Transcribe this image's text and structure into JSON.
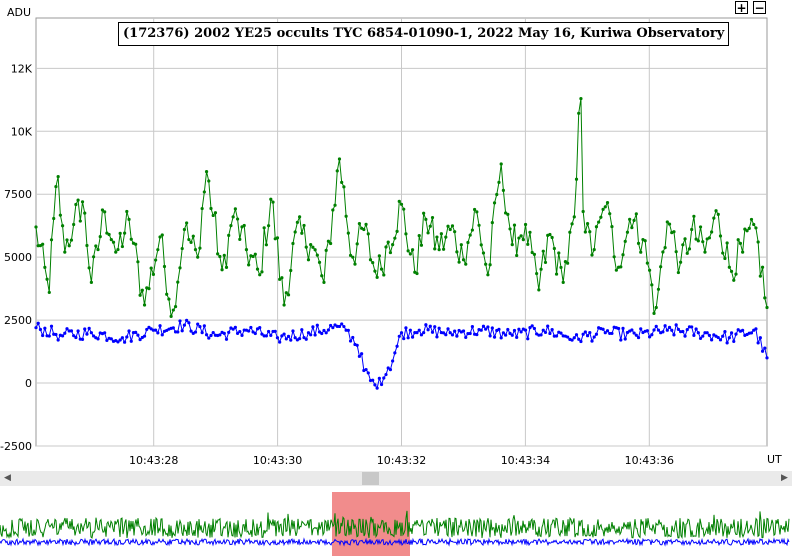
{
  "chart_data": {
    "type": "line",
    "title": "(172376) 2002 YE25 occults TYC 6854-01090-1, 2022 May 16, Kuriwa Observatory",
    "ylabel": "ADU",
    "xlabel": "UT",
    "ylim": [
      -2500,
      14500
    ],
    "xlim": [
      "10:43:26.1",
      "10:43:37.9"
    ],
    "y_tick_labels": [
      "-2500",
      "0",
      "2500",
      "5000",
      "7500",
      "10K",
      "12K"
    ],
    "y_ticks": [
      -2500,
      0,
      2500,
      5000,
      7500,
      10000,
      12500
    ],
    "x_tick_labels": [
      "10:43:28",
      "10:43:30",
      "10:43:32",
      "10:43:34",
      "10:43:36"
    ],
    "x_ticks_seconds": [
      28,
      30,
      32,
      34,
      36
    ],
    "grid": true,
    "series": [
      {
        "color": "#008000",
        "anchors_x": [
          26.1,
          26.3,
          26.45,
          26.55,
          26.7,
          26.85,
          27.0,
          27.2,
          27.4,
          27.6,
          27.85,
          28.1,
          28.3,
          28.5,
          28.7,
          28.85,
          29.1,
          29.3,
          29.5,
          29.7,
          29.9,
          30.1,
          30.3,
          30.55,
          30.75,
          31.0,
          31.2,
          31.4,
          31.6,
          31.8,
          32.0,
          32.2,
          32.4,
          32.6,
          32.8,
          33.0,
          33.2,
          33.4,
          33.6,
          33.8,
          34.0,
          34.2,
          34.4,
          34.6,
          34.8,
          34.88,
          34.95,
          35.1,
          35.3,
          35.5,
          35.7,
          35.9,
          36.1,
          36.3,
          36.5,
          36.7,
          36.9,
          37.1,
          37.3,
          37.5,
          37.7,
          37.9
        ],
        "anchors_y": [
          6200,
          3600,
          8200,
          5200,
          6300,
          7200,
          4000,
          6800,
          5200,
          6500,
          3100,
          5800,
          2900,
          6100,
          5000,
          8400,
          4500,
          6600,
          5300,
          4300,
          7300,
          3100,
          6000,
          5500,
          4000,
          8900,
          5000,
          6100,
          4200,
          5600,
          7100,
          4400,
          6500,
          5300,
          6100,
          4900,
          6800,
          4300,
          8700,
          5500,
          6300,
          3700,
          5900,
          4000,
          6600,
          11300,
          6000,
          5300,
          7000,
          4600,
          6500,
          5700,
          3000,
          6400,
          4800,
          6100,
          5200,
          6700,
          4600,
          5200,
          6300,
          3000
        ],
        "amplitude": 1300
      },
      {
        "color": "#0000ff",
        "anchors_x": [
          26.1,
          26.5,
          27.0,
          27.5,
          28.0,
          28.5,
          29.0,
          29.5,
          30.0,
          30.5,
          30.9,
          31.1,
          31.3,
          31.4,
          31.5,
          31.6,
          31.7,
          31.8,
          31.9,
          32.0,
          32.3,
          32.8,
          33.3,
          33.8,
          34.3,
          34.8,
          35.3,
          35.8,
          36.3,
          36.8,
          37.3,
          37.7,
          37.9
        ],
        "anchors_y": [
          2200,
          1900,
          2000,
          1800,
          2100,
          2300,
          1900,
          2100,
          1800,
          2000,
          2200,
          2100,
          1500,
          500,
          100,
          -200,
          200,
          600,
          1200,
          2000,
          2100,
          2000,
          2100,
          1900,
          2100,
          1800,
          2000,
          1900,
          2100,
          2000,
          1800,
          2100,
          1000
        ],
        "amplitude": 450
      }
    ],
    "overview_window_seconds": [
      26.1,
      37.9
    ]
  }
}
